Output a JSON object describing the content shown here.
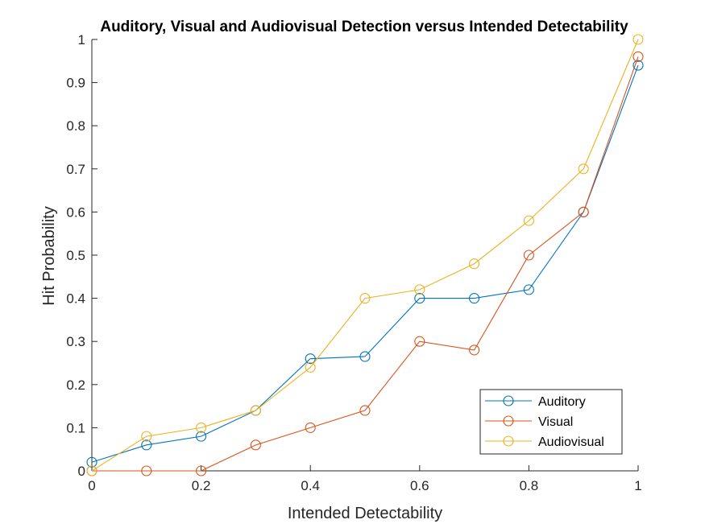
{
  "chart_data": {
    "type": "line",
    "title": "Auditory, Visual and Audiovisual Detection versus Intended Detectability",
    "xlabel": "Intended Detectability",
    "ylabel": "Hit Probability",
    "xlim": [
      0,
      1
    ],
    "ylim": [
      0,
      1
    ],
    "xticks": [
      "0",
      "0.2",
      "0.4",
      "0.6",
      "0.8",
      "1"
    ],
    "yticks": [
      "0",
      "0.1",
      "0.2",
      "0.3",
      "0.4",
      "0.5",
      "0.6",
      "0.7",
      "0.8",
      "0.9",
      "1"
    ],
    "x": [
      0,
      0.1,
      0.2,
      0.3,
      0.4,
      0.5,
      0.6,
      0.7,
      0.8,
      0.9,
      1.0
    ],
    "series": [
      {
        "name": "Auditory",
        "color": "#0072BD",
        "marker": "circle",
        "values": [
          0.02,
          0.06,
          0.08,
          0.14,
          0.26,
          0.265,
          0.4,
          0.4,
          0.42,
          0.6,
          0.94
        ]
      },
      {
        "name": "Visual",
        "color": "#D95319",
        "marker": "circle",
        "values": [
          0.0,
          0.0,
          0.0,
          0.06,
          0.1,
          0.14,
          0.3,
          0.28,
          0.5,
          0.6,
          0.96
        ]
      },
      {
        "name": "Audiovisual",
        "color": "#EDB120",
        "marker": "circle",
        "values": [
          0.0,
          0.08,
          0.1,
          0.14,
          0.24,
          0.4,
          0.42,
          0.48,
          0.58,
          0.7,
          1.0
        ]
      }
    ],
    "grid": false,
    "legend_position": "bottom-right"
  }
}
